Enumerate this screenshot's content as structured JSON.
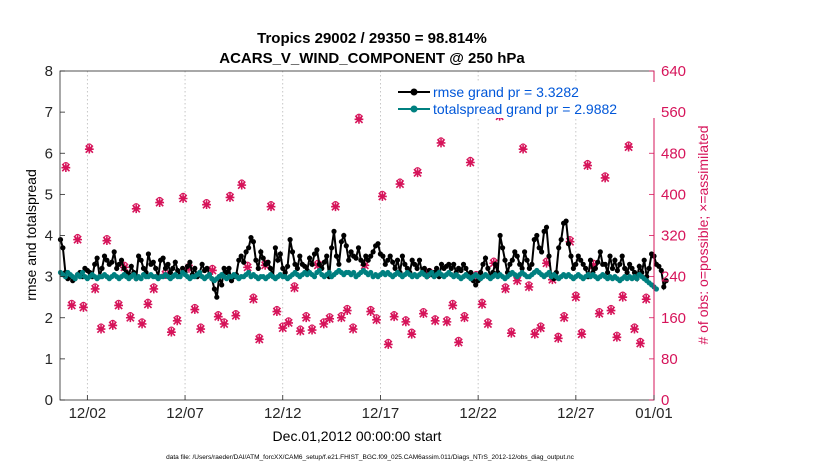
{
  "chart_data": {
    "type": "line",
    "title": "Tropics 29002 / 29350 = 98.814%",
    "subtitle": "ACARS_V_WIND_COMPONENT @ 250 hPa",
    "xlabel": "Dec.01,2012 00:00:00 start",
    "ylabel": "rmse and totalspread",
    "y2label": "# of obs: o=possible; ×=assimilated",
    "footer": "data file: /Users/raeder/DAI/ATM_forcXX/CAM6_setup/f.e21.FHIST_BGC.f09_025.CAM6assim.011/Diags_NTrS_2012-12/obs_diag_output.nc",
    "xlim": [
      0.6,
      31.0
    ],
    "ylim": [
      0,
      8
    ],
    "y2lim": [
      0,
      640
    ],
    "xticks": [
      {
        "v": 2,
        "label": "12/02"
      },
      {
        "v": 7,
        "label": "12/07"
      },
      {
        "v": 12,
        "label": "12/12"
      },
      {
        "v": 17,
        "label": "12/17"
      },
      {
        "v": 22,
        "label": "12/22"
      },
      {
        "v": 27,
        "label": "12/27"
      },
      {
        "v": 31,
        "label": "01/01"
      }
    ],
    "yticks": [
      "0",
      "1",
      "2",
      "3",
      "4",
      "5",
      "6",
      "7",
      "8"
    ],
    "y2ticks": [
      "0",
      "80",
      "160",
      "240",
      "320",
      "400",
      "480",
      "560",
      "640"
    ],
    "colors": {
      "rmse": "#000000",
      "spread": "#008080",
      "obs": "#d6145a",
      "right_axis": "#d6145a"
    },
    "legend": {
      "position": "top-right"
    },
    "series": [
      {
        "name": "rmse grand pr = 3.3282",
        "color": "#000000",
        "start": 0.625,
        "step": 0.125,
        "values": [
          3.9,
          3.7,
          3.1,
          2.95,
          3.0,
          2.9,
          2.95,
          3.05,
          3.1,
          3.0,
          3.2,
          3.15,
          3.1,
          3.0,
          3.3,
          3.45,
          3.0,
          3.2,
          3.5,
          3.4,
          3.3,
          3.35,
          3.6,
          3.2,
          3.3,
          3.4,
          3.2,
          3.1,
          3.05,
          3.25,
          3.1,
          2.95,
          3.5,
          3.4,
          3.2,
          3.1,
          3.55,
          3.3,
          3.35,
          3.2,
          3.0,
          3.4,
          3.45,
          3.2,
          3.3,
          3.1,
          3.2,
          3.35,
          3.15,
          3.05,
          3.2,
          3.1,
          3.25,
          3.35,
          3.05,
          3.2,
          3.0,
          3.1,
          3.3,
          3.15,
          3.2,
          3.05,
          2.95,
          2.7,
          2.5,
          3.0,
          2.8,
          3.2,
          3.1,
          3.2,
          2.9,
          3.0,
          3.05,
          3.4,
          3.5,
          3.35,
          3.6,
          3.7,
          3.95,
          3.85,
          3.4,
          3.2,
          3.6,
          3.45,
          3.3,
          3.35,
          3.2,
          3.0,
          3.7,
          3.4,
          3.55,
          3.2,
          3.1,
          3.25,
          3.9,
          3.6,
          3.3,
          3.2,
          3.5,
          3.3,
          3.25,
          3.15,
          3.45,
          3.3,
          3.55,
          3.65,
          3.3,
          3.2,
          3.35,
          3.5,
          3.0,
          3.7,
          4.1,
          3.5,
          3.3,
          3.85,
          4.0,
          3.75,
          3.4,
          3.6,
          3.5,
          3.45,
          3.7,
          3.4,
          3.3,
          3.5,
          3.4,
          3.5,
          3.6,
          3.75,
          3.8,
          3.55,
          3.5,
          3.3,
          3.4,
          3.5,
          3.35,
          3.2,
          3.4,
          3.1,
          3.5,
          3.3,
          3.2,
          3.1,
          3.4,
          3.3,
          3.2,
          3.4,
          3.1,
          3.2,
          3.0,
          3.15,
          3.05,
          3.1,
          3.2,
          3.0,
          3.3,
          3.2,
          3.25,
          3.3,
          3.2,
          3.3,
          3.1,
          3.2,
          3.15,
          3.3,
          3.2,
          3.05,
          3.1,
          2.9,
          2.8,
          2.9,
          3.1,
          3.3,
          3.45,
          3.2,
          3.0,
          3.1,
          3.3,
          3.1,
          4.0,
          3.7,
          3.4,
          3.1,
          3.3,
          3.4,
          3.6,
          3.5,
          3.3,
          3.2,
          3.6,
          3.4,
          3.2,
          3.3,
          3.9,
          4.0,
          3.7,
          3.6,
          4.1,
          4.2,
          3.5,
          3.0,
          2.95,
          3.1,
          3.7,
          3.9,
          4.3,
          4.35,
          3.8,
          3.5,
          3.2,
          3.3,
          3.5,
          3.4,
          3.3,
          3.2,
          3.0,
          3.4,
          3.1,
          3.2,
          3.35,
          3.6,
          3.3,
          3.3,
          3.1,
          3.5,
          3.2,
          3.4,
          3.15,
          3.3,
          3.5,
          3.2,
          3.1,
          3.3,
          3.2,
          3.1,
          2.95,
          3.25,
          3.1,
          3.4,
          3.0,
          3.2,
          3.55,
          3.5,
          3.3,
          3.25,
          3.15,
          2.75,
          2.9
        ]
      },
      {
        "name": "totalspread grand pr = 2.9882",
        "color": "#008080",
        "start": 0.625,
        "step": 0.125,
        "values": [
          3.1,
          3.05,
          3.0,
          3.1,
          3.05,
          3.0,
          2.95,
          3.05,
          3.0,
          3.1,
          3.0,
          2.95,
          3.0,
          3.05,
          3.0,
          2.95,
          3.0,
          3.0,
          3.05,
          3.0,
          2.95,
          3.0,
          3.05,
          3.0,
          2.95,
          3.0,
          3.05,
          3.0,
          2.95,
          3.0,
          3.05,
          2.95,
          3.0,
          2.95,
          3.05,
          3.0,
          3.0,
          3.05,
          3.0,
          3.0,
          2.95,
          3.0,
          3.0,
          3.05,
          3.0,
          2.95,
          3.0,
          3.05,
          3.0,
          3.0,
          3.1,
          3.05,
          3.0,
          2.95,
          3.0,
          3.0,
          3.05,
          3.1,
          3.0,
          2.95,
          3.0,
          3.05,
          2.95,
          2.9,
          2.95,
          3.0,
          3.05,
          3.0,
          2.95,
          3.0,
          3.0,
          3.05,
          3.0,
          2.95,
          3.0,
          3.0,
          3.05,
          3.1,
          3.0,
          3.05,
          3.0,
          2.95,
          3.0,
          3.0,
          2.95,
          3.0,
          3.05,
          3.0,
          2.95,
          3.0,
          3.05,
          3.0,
          3.0,
          2.95,
          3.0,
          3.05,
          3.1,
          3.05,
          3.0,
          3.05,
          3.1,
          3.05,
          3.1,
          3.05,
          3.0,
          3.1,
          3.15,
          3.05,
          3.0,
          3.05,
          3.1,
          3.0,
          3.05,
          3.1,
          3.15,
          3.1,
          3.05,
          3.1,
          3.1,
          3.05,
          3.1,
          3.0,
          3.05,
          3.1,
          3.15,
          3.1,
          3.05,
          3.1,
          3.0,
          3.05,
          3.0,
          3.05,
          3.1,
          3.05,
          3.1,
          3.05,
          3.0,
          3.05,
          3.1,
          3.05,
          3.0,
          3.05,
          3.1,
          3.05,
          3.0,
          3.05,
          3.0,
          3.05,
          3.1,
          3.05,
          3.0,
          3.05,
          3.1,
          3.0,
          3.05,
          3.1,
          3.05,
          3.0,
          3.05,
          3.1,
          3.05,
          3.0,
          3.05,
          3.0,
          2.95,
          3.0,
          3.05,
          3.0,
          2.95,
          3.0,
          3.05,
          3.0,
          2.95,
          3.0,
          3.05,
          3.0,
          2.95,
          3.0,
          3.05,
          3.0,
          3.05,
          3.0,
          2.95,
          3.0,
          3.05,
          3.1,
          3.05,
          3.0,
          3.05,
          3.1,
          3.05,
          3.0,
          3.0,
          3.05,
          3.1,
          3.15,
          3.1,
          3.05,
          3.0,
          3.05,
          3.1,
          3.0,
          3.05,
          3.0,
          2.95,
          3.0,
          3.05,
          3.0,
          3.05,
          3.0,
          2.95,
          3.0,
          3.05,
          3.0,
          2.95,
          3.0,
          3.05,
          3.0,
          3.05,
          3.0,
          2.95,
          3.0,
          3.05,
          3.0,
          2.95,
          3.0,
          2.95,
          3.0,
          2.95,
          2.9,
          2.95,
          3.0,
          2.95,
          3.0,
          2.95,
          3.0,
          2.95,
          3.05,
          3.0,
          2.95,
          2.9,
          2.85,
          2.8,
          2.75,
          2.7
        ]
      }
    ],
    "obs_counts": {
      "x": [
        0.9,
        1.2,
        1.5,
        1.8,
        2.1,
        2.4,
        2.7,
        3.0,
        3.3,
        3.6,
        3.9,
        4.2,
        4.5,
        4.8,
        5.1,
        5.4,
        5.7,
        6.0,
        6.3,
        6.6,
        6.9,
        7.2,
        7.5,
        7.8,
        8.1,
        8.4,
        8.7,
        9.0,
        9.3,
        9.6,
        9.9,
        10.2,
        10.5,
        10.8,
        11.1,
        11.4,
        11.7,
        12.0,
        12.3,
        12.6,
        12.9,
        13.2,
        13.5,
        13.8,
        14.1,
        14.4,
        14.7,
        15.0,
        15.3,
        15.6,
        15.9,
        16.2,
        16.5,
        16.8,
        17.1,
        17.4,
        17.7,
        18.0,
        18.3,
        18.6,
        18.9,
        19.2,
        19.5,
        19.8,
        20.1,
        20.4,
        20.7,
        21.0,
        21.3,
        21.6,
        21.9,
        22.2,
        22.5,
        22.8,
        23.1,
        23.4,
        23.7,
        24.0,
        24.3,
        24.6,
        24.9,
        25.2,
        25.5,
        25.8,
        26.1,
        26.4,
        26.7,
        27.0,
        27.3,
        27.6,
        27.9,
        28.2,
        28.5,
        28.8,
        29.1,
        29.4,
        29.7,
        30.0,
        30.3,
        30.6
      ],
      "values": [
        452,
        184,
        312,
        180,
        488,
        216,
        138,
        310,
        145,
        184,
        258,
        160,
        372,
        148,
        186,
        216,
        384,
        244,
        132,
        154,
        392,
        256,
        176,
        138,
        380,
        252,
        162,
        148,
        394,
        164,
        418,
        258,
        196,
        118,
        262,
        376,
        172,
        140,
        150,
        218,
        134,
        160,
        136,
        262,
        148,
        158,
        376,
        160,
        174,
        138,
        546,
        262,
        172,
        156,
        396,
        108,
        162,
        420,
        152,
        128,
        442,
        168,
        246,
        154,
        500,
        152,
        184,
        112,
        160,
        462,
        240,
        186,
        148,
        266,
        552,
        216,
        130,
        232,
        488,
        220,
        128,
        140,
        266,
        234,
        120,
        160,
        308,
        200,
        128,
        456,
        262,
        168,
        432,
        174,
        122,
        200,
        492,
        138,
        110,
        196
      ]
    }
  }
}
